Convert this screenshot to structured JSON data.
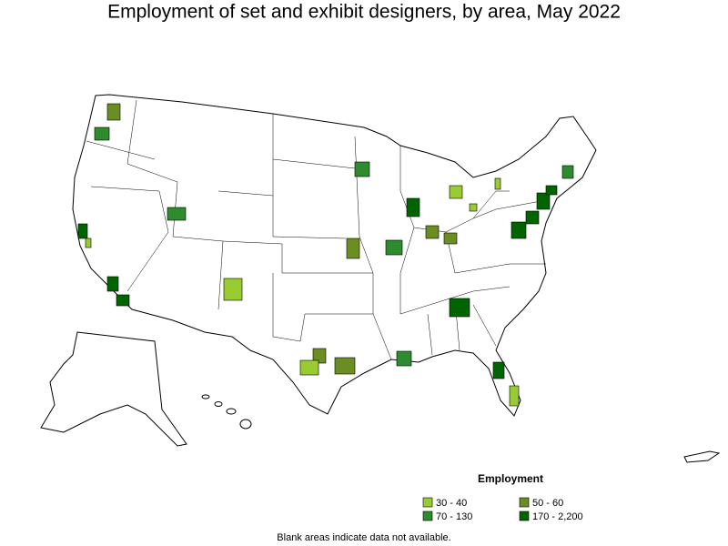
{
  "title": "Employment of set and exhibit designers, by area, May 2022",
  "legend": {
    "title": "Employment",
    "items": [
      {
        "label": "30 - 40",
        "color": "#99cc33"
      },
      {
        "label": "50 - 60",
        "color": "#6b8e23"
      },
      {
        "label": "70 - 130",
        "color": "#2e8b2e"
      },
      {
        "label": "170 - 2,200",
        "color": "#006400"
      }
    ]
  },
  "note": "Blank areas indicate data not available."
}
